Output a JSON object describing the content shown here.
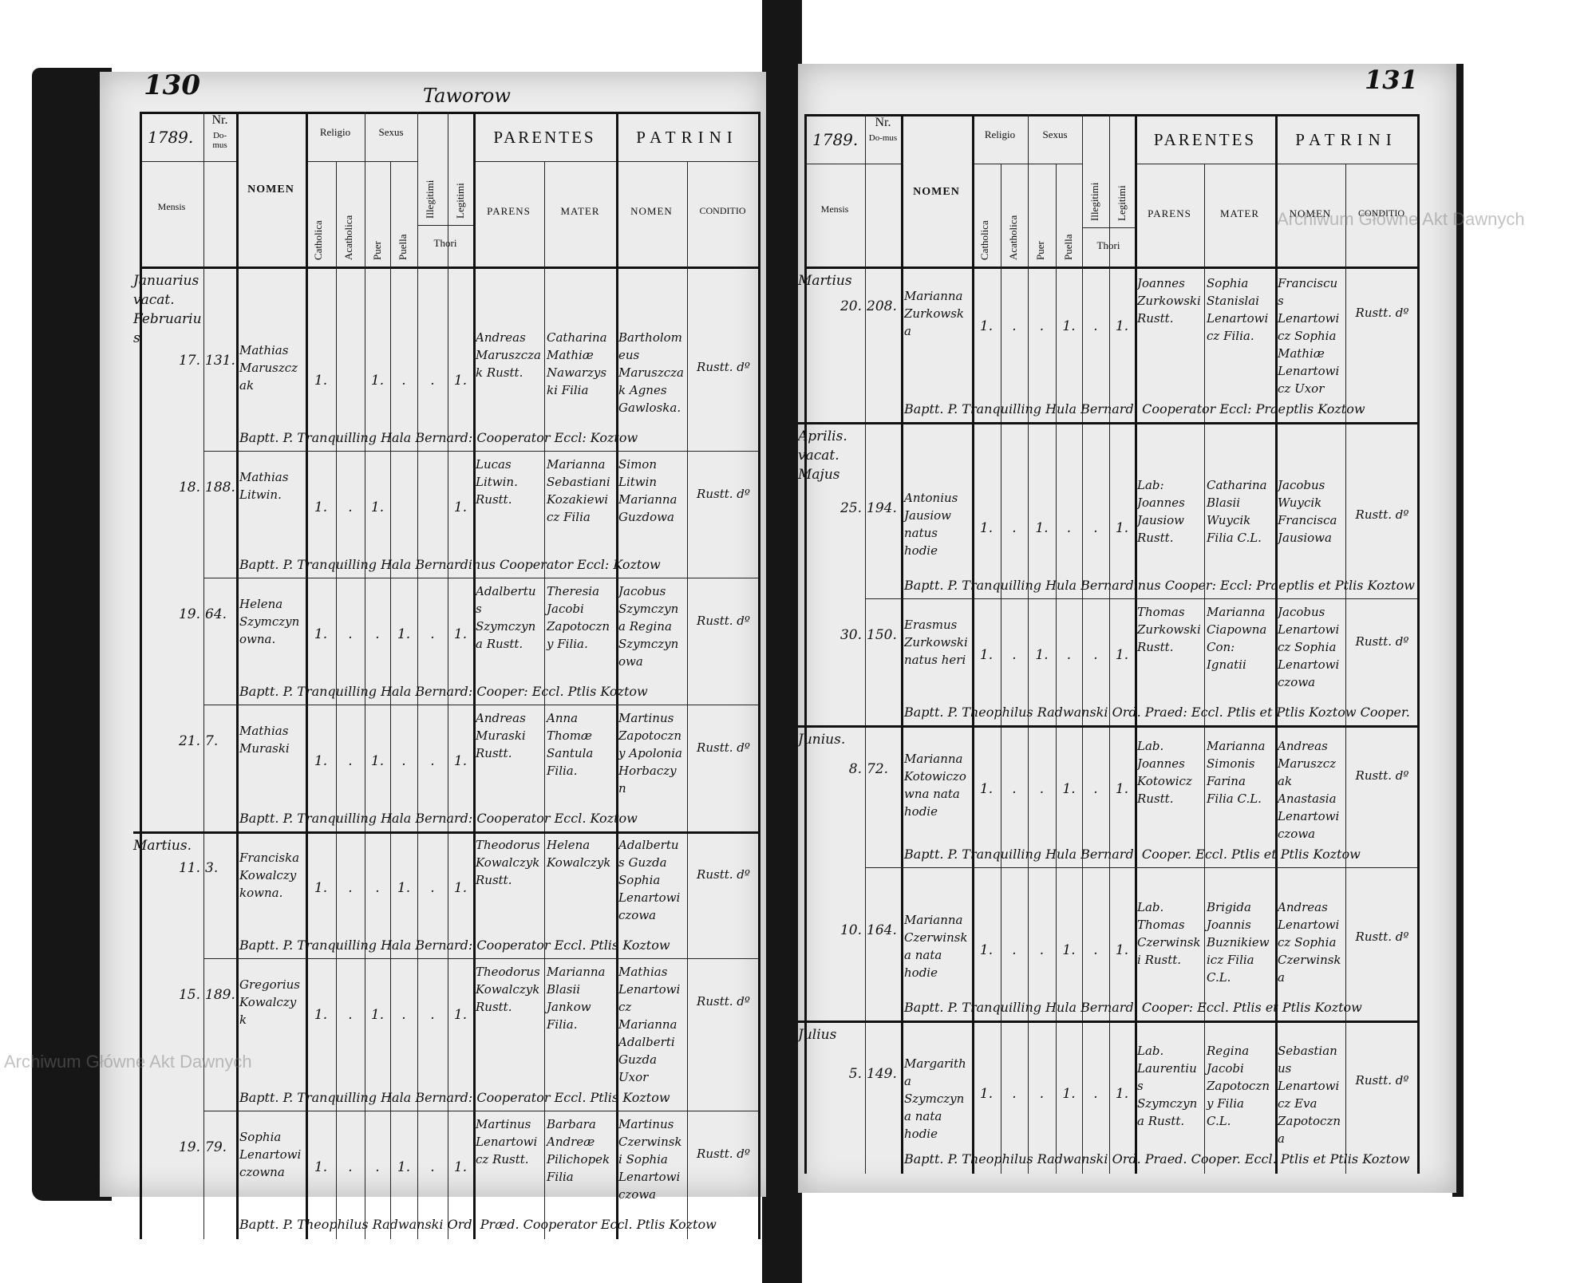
{
  "document": {
    "watermark": "Archiwum Główne Akt Dawnych",
    "header_labels": {
      "year": "1789.",
      "nr": "Nr.",
      "domus": "Do-mus",
      "mensis": "Mensis",
      "nomen": "NOMEN",
      "religio": "Religio",
      "catholica": "Catholica",
      "acatholica": "Acatholica",
      "sexus": "Sexus",
      "puer": "Puer",
      "puella": "Puella",
      "illegitimi": "Illegitimi",
      "legitimi": "Legitimi",
      "thori": "Thori",
      "parentes": "PARENTES",
      "parens": "PARENS",
      "mater": "MATER",
      "patrini": "PATRINI",
      "patrini_nomen": "NOMEN",
      "conditio": "CONDITIO"
    },
    "left_page": {
      "page_number": "130",
      "title": "Taworow",
      "entries": [
        {
          "month": "Januarius vacat. Februarius",
          "day": "17.",
          "nr": "131.",
          "name": "Mathias Maruszczak",
          "cath": "1.",
          "acath": "",
          "puer": "1.",
          "puella": ".",
          "illeg": ".",
          "legit": "1.",
          "parens": "Andreas Maruszczak Rustt.",
          "mater": "Catharina Mathiæ Nawarzyski Filia",
          "patrini": "Bartholomeus Maruszczak Agnes Gawloska.",
          "conditio": "Rustt. dº",
          "note": "Baptt. P. Tranquilling Hala Bernard: Cooperator Eccl: Koztow"
        },
        {
          "month": "",
          "day": "18.",
          "nr": "188.",
          "name": "Mathias Litwin.",
          "cath": "1.",
          "acath": ".",
          "puer": "1.",
          "puella": "",
          "illeg": "",
          "legit": "1.",
          "parens": "Lucas Litwin. Rustt.",
          "mater": "Marianna Sebastiani Kozakiewicz Filia",
          "patrini": "Simon Litwin Marianna Guzdowa",
          "conditio": "Rustt. dº",
          "note": "Baptt. P. Tranquilling Hala Bernardinus Cooperator Eccl: Koztow"
        },
        {
          "month": "",
          "day": "19.",
          "nr": "64.",
          "name": "Helena Szymczynowna.",
          "cath": "1.",
          "acath": ".",
          "puer": ".",
          "puella": "1.",
          "illeg": ".",
          "legit": "1.",
          "parens": "Adalbertus Szymczyna Rustt.",
          "mater": "Theresia Jacobi Zapotoczny Filia.",
          "patrini": "Jacobus Szymczyna Regina Szymczynowa",
          "conditio": "Rustt. dº",
          "note": "Baptt. P. Tranquilling Hala Bernard: Cooper: Eccl. Ptlis Koztow"
        },
        {
          "month": "",
          "day": "21.",
          "nr": "7.",
          "name": "Mathias Muraski",
          "cath": "1.",
          "acath": ".",
          "puer": "1.",
          "puella": ".",
          "illeg": ".",
          "legit": "1.",
          "parens": "Andreas Muraski Rustt.",
          "mater": "Anna Thomæ Santula Filia.",
          "patrini": "Martinus Zapotoczny Apolonia Horbaczyn",
          "conditio": "Rustt. dº",
          "note": "Baptt. P. Tranquilling Hala Bernard: Cooperator Eccl. Koztow"
        },
        {
          "month": "Martius.",
          "day": "11.",
          "nr": "3.",
          "name": "Franciska Kowalczykowna.",
          "cath": "1.",
          "acath": ".",
          "puer": ".",
          "puella": "1.",
          "illeg": ".",
          "legit": "1.",
          "parens": "Theodorus Kowalczyk Rustt.",
          "mater": "Helena Kowalczyk",
          "patrini": "Adalbertus Guzda Sophia Lenartowiczowa",
          "conditio": "Rustt. dº",
          "note": "Baptt. P. Tranquilling Hala Bernard: Cooperator Eccl. Ptlis Koztow"
        },
        {
          "month": "",
          "day": "15.",
          "nr": "189.",
          "name": "Gregorius Kowalczyk",
          "cath": "1.",
          "acath": ".",
          "puer": "1.",
          "puella": ".",
          "illeg": ".",
          "legit": "1.",
          "parens": "Theodorus Kowalczyk Rustt.",
          "mater": "Marianna Blasii Jankow Filia.",
          "patrini": "Mathias Lenartowicz Marianna Adalberti Guzda Uxor",
          "conditio": "Rustt. dº",
          "note": "Baptt. P. Tranquilling Hala Bernard: Cooperator Eccl. Ptlis Koztow"
        },
        {
          "month": "",
          "day": "19.",
          "nr": "79.",
          "name": "Sophia Lenartowiczowna",
          "cath": "1.",
          "acath": ".",
          "puer": ".",
          "puella": "1.",
          "illeg": ".",
          "legit": "1.",
          "parens": "Martinus Lenartowicz Rustt.",
          "mater": "Barbara Andreæ Pilichopek Filia",
          "patrini": "Martinus Czerwinski Sophia Lenartowiczowa",
          "conditio": "Rustt. dº",
          "note": "Baptt. P. Theophilus Radwanski Ord. Præd. Cooperator Eccl. Ptlis Koztow"
        }
      ]
    },
    "right_page": {
      "page_number": "131",
      "entries": [
        {
          "month": "Martius",
          "day": "20.",
          "nr": "208.",
          "name": "Marianna Zurkowska",
          "cath": "1.",
          "acath": ".",
          "puer": ".",
          "puella": "1.",
          "illeg": ".",
          "legit": "1.",
          "parens": "Joannes Zurkowski Rustt.",
          "mater": "Sophia Stanislai Lenartowicz Filia.",
          "patrini": "Franciscus Lenartowicz Sophia Mathiæ Lenartowicz Uxor",
          "conditio": "Rustt. dº",
          "note": "Baptt. P. Tranquilling Hula Bernard: Cooperator Eccl: Praeptlis Koztow"
        },
        {
          "month": "Aprilis. vacat. Majus",
          "day": "25.",
          "nr": "194.",
          "name": "Antonius Jausiow natus hodie",
          "cath": "1.",
          "acath": ".",
          "puer": "1.",
          "puella": ".",
          "illeg": ".",
          "legit": "1.",
          "parens": "Lab: Joannes Jausiow Rustt.",
          "mater": "Catharina Blasii Wuycik Filia C.L.",
          "patrini": "Jacobus Wuycik Francisca Jausiowa",
          "conditio": "Rustt. dº",
          "note": "Baptt. P. Tranquilling Hula Bernardinus Cooper: Eccl: Praeptlis et Ptlis Koztow"
        },
        {
          "month": "",
          "day": "30.",
          "nr": "150.",
          "name": "Erasmus Zurkowski natus heri",
          "cath": "1.",
          "acath": ".",
          "puer": "1.",
          "puella": ".",
          "illeg": ".",
          "legit": "1.",
          "parens": "Thomas Zurkowski Rustt.",
          "mater": "Marianna Ciapowna Con: Ignatii",
          "patrini": "Jacobus Lenartowicz Sophia Lenartowiczowa",
          "conditio": "Rustt. dº",
          "note": "Baptt. P. Theophilus Radwanski Ord. Praed: Eccl. Ptlis et Ptlis Koztow Cooper."
        },
        {
          "month": "Junius.",
          "day": "8.",
          "nr": "72.",
          "name": "Marianna Kotowiczowna nata hodie",
          "cath": "1.",
          "acath": ".",
          "puer": ".",
          "puella": "1.",
          "illeg": ".",
          "legit": "1.",
          "parens": "Lab. Joannes Kotowicz Rustt.",
          "mater": "Marianna Simonis Farina Filia C.L.",
          "patrini": "Andreas Maruszczak Anastasia Lenartowiczowa",
          "conditio": "Rustt. dº",
          "note": "Baptt. P. Tranquilling Hula Bernard. Cooper. Eccl. Ptlis et Ptlis Koztow"
        },
        {
          "month": "",
          "day": "10.",
          "nr": "164.",
          "name": "Marianna Czerwinska nata hodie",
          "cath": "1.",
          "acath": ".",
          "puer": ".",
          "puella": "1.",
          "illeg": ".",
          "legit": "1.",
          "parens": "Lab. Thomas Czerwinski Rustt.",
          "mater": "Brigida Joannis Buznikiewicz Filia C.L.",
          "patrini": "Andreas Lenartowicz Sophia Czerwinska",
          "conditio": "Rustt. dº",
          "note": "Baptt. P. Tranquilling Hula Bernard. Cooper: Eccl. Ptlis et Ptlis Koztow"
        },
        {
          "month": "Julius",
          "day": "5.",
          "nr": "149.",
          "name": "Margaritha Szymczyna nata hodie",
          "cath": "1.",
          "acath": ".",
          "puer": ".",
          "puella": "1.",
          "illeg": ".",
          "legit": "1.",
          "parens": "Lab. Laurentius Szymczyna Rustt.",
          "mater": "Regina Jacobi Zapotoczny Filia C.L.",
          "patrini": "Sebastianus Lenartowicz Eva Zapotoczna",
          "conditio": "Rustt. dº",
          "note": "Baptt. P. Theophilus Radwanski Ord. Praed. Cooper. Eccl. Ptlis et Ptlis Koztow"
        }
      ]
    }
  }
}
